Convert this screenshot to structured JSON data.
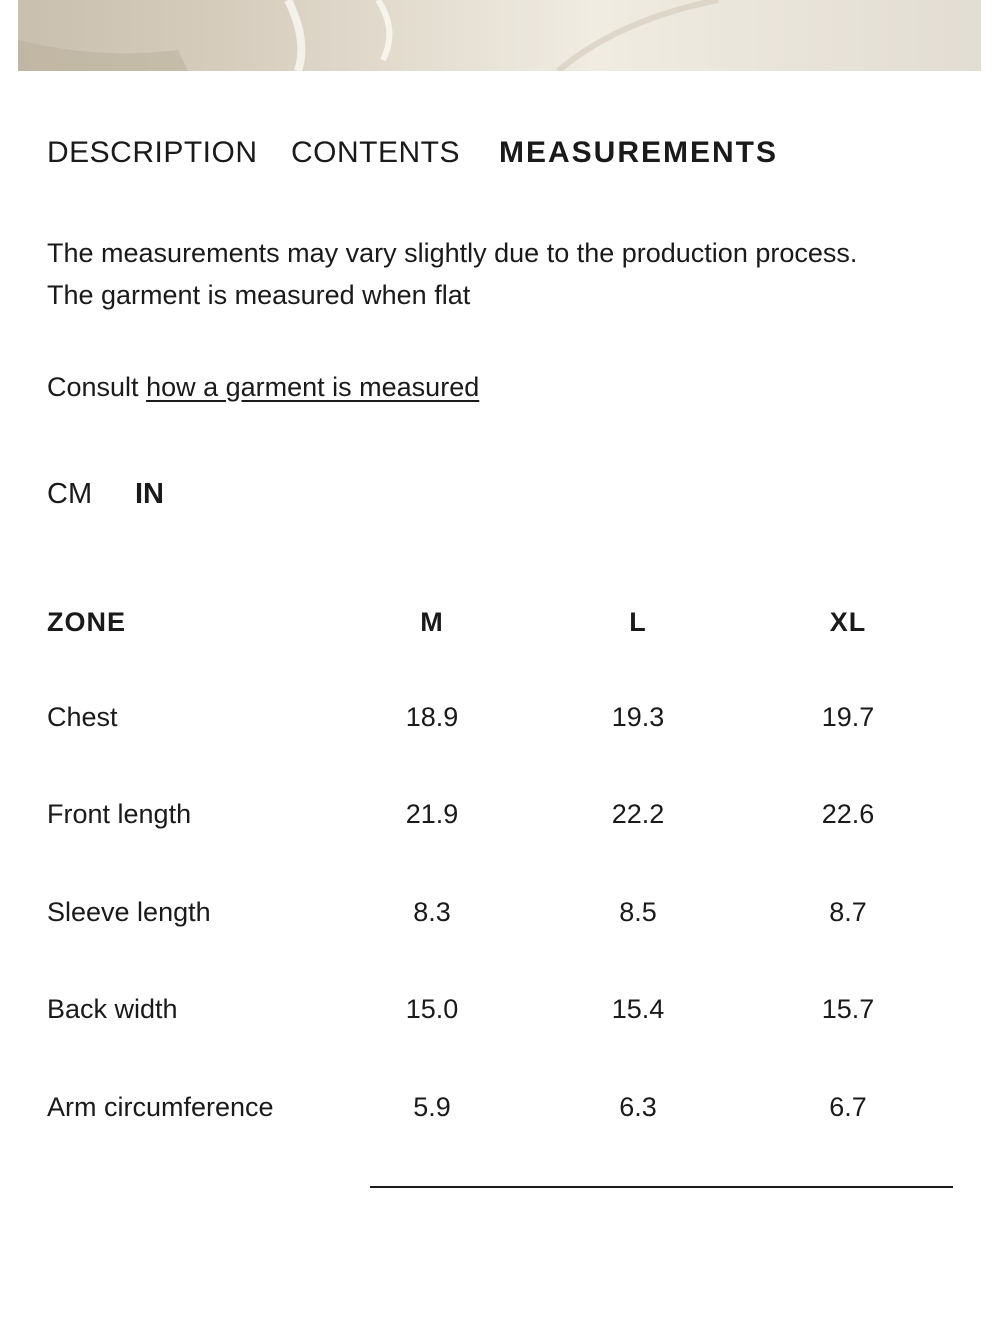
{
  "tabs": [
    "DESCRIPTION",
    "CONTENTS",
    "MEASUREMENTS"
  ],
  "note": {
    "line1": "The measurements may vary slightly due to the production process.",
    "line2": "The garment is measured when flat"
  },
  "consult": {
    "prefix": "Consult",
    "link": "how a garment is measured"
  },
  "units": [
    "CM",
    "IN"
  ],
  "table": {
    "header": [
      "ZONE",
      "M",
      "L",
      "XL"
    ],
    "rows": [
      [
        "Chest",
        "18.9",
        "19.3",
        "19.7"
      ],
      [
        "Front length",
        "21.9",
        "22.2",
        "22.6"
      ],
      [
        "Sleeve length",
        "8.3",
        "8.5",
        "8.7"
      ],
      [
        "Back width",
        "15.0",
        "15.4",
        "15.7"
      ],
      [
        "Arm circumference",
        "5.9",
        "6.3",
        "6.7"
      ]
    ]
  }
}
